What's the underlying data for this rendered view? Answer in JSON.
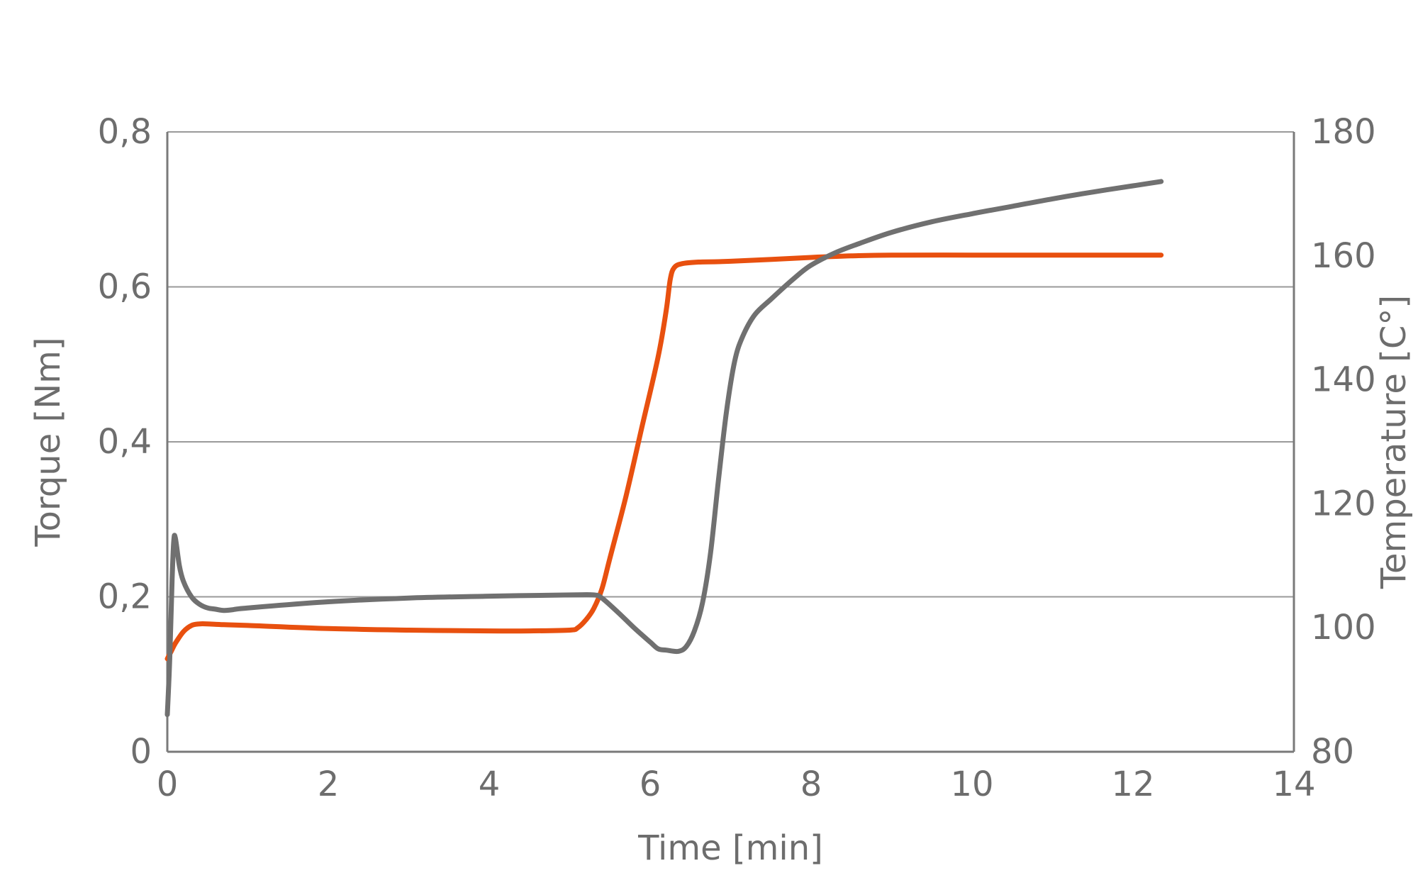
{
  "chart_data": {
    "type": "line",
    "title": "",
    "xlabel": "Time [min]",
    "ylabel_left": "Torque [Nm]",
    "ylabel_right": "Temperature [C°]",
    "xlim": [
      0,
      14
    ],
    "ylim_left": [
      0,
      0.8
    ],
    "ylim_right": [
      80,
      180
    ],
    "x_ticks": [
      "0",
      "2",
      "4",
      "6",
      "8",
      "10",
      "12",
      "14"
    ],
    "y_left_ticks": [
      "0",
      "0,2",
      "0,4",
      "0,6",
      "0,8"
    ],
    "y_right_ticks": [
      "80",
      "100",
      "120",
      "140",
      "160",
      "180"
    ],
    "y_left_tick_values": [
      0,
      0.2,
      0.4,
      0.6,
      0.8
    ],
    "y_right_tick_values": [
      80,
      100,
      120,
      140,
      160,
      180
    ],
    "x_tick_values": [
      0,
      2,
      4,
      6,
      8,
      10,
      12,
      14
    ],
    "grid": "horizontal",
    "legend": "none",
    "series": [
      {
        "axis": "left",
        "color": "#e8500f",
        "x": [
          0,
          0.05,
          0.1,
          0.2,
          0.3,
          0.4,
          0.5,
          0.7,
          1,
          2,
          3,
          4,
          4.5,
          5,
          5.1,
          5.2,
          5.3,
          5.4,
          5.5,
          5.7,
          5.9,
          6.1,
          6.2,
          6.25,
          6.3,
          6.4,
          6.6,
          7,
          8,
          8.5,
          9,
          10,
          11,
          12,
          12.35
        ],
        "y": [
          0.12,
          0.13,
          0.14,
          0.155,
          0.163,
          0.165,
          0.165,
          0.164,
          0.163,
          0.159,
          0.157,
          0.156,
          0.156,
          0.157,
          0.16,
          0.17,
          0.185,
          0.21,
          0.25,
          0.33,
          0.42,
          0.51,
          0.57,
          0.61,
          0.625,
          0.63,
          0.632,
          0.633,
          0.638,
          0.64,
          0.641,
          0.641,
          0.641,
          0.641,
          0.641
        ]
      },
      {
        "axis": "right",
        "color": "#707070",
        "x": [
          0,
          0.03,
          0.06,
          0.08,
          0.1,
          0.15,
          0.2,
          0.3,
          0.4,
          0.5,
          0.6,
          0.7,
          0.8,
          1,
          2,
          3,
          4,
          5,
          5.3,
          5.4,
          5.6,
          5.8,
          6,
          6.1,
          6.2,
          6.35,
          6.45,
          6.55,
          6.65,
          6.75,
          6.85,
          6.95,
          7.05,
          7.15,
          7.3,
          7.5,
          7.8,
          8,
          8.3,
          8.6,
          9,
          9.5,
          10,
          10.5,
          11,
          11.5,
          12,
          12.35
        ],
        "y": [
          86,
          95,
          108,
          114,
          114.5,
          110,
          107.5,
          105,
          103.8,
          103.2,
          103,
          102.8,
          102.9,
          103.2,
          104.2,
          104.8,
          105.1,
          105.3,
          105.3,
          104.8,
          102.5,
          100,
          97.7,
          96.6,
          96.4,
          96.2,
          97,
          99.5,
          104,
          112,
          124,
          135,
          143,
          147,
          150.5,
          153,
          156.5,
          158.5,
          160.5,
          162,
          163.8,
          165.5,
          166.8,
          168,
          169.2,
          170.3,
          171.3,
          172
        ]
      }
    ]
  }
}
